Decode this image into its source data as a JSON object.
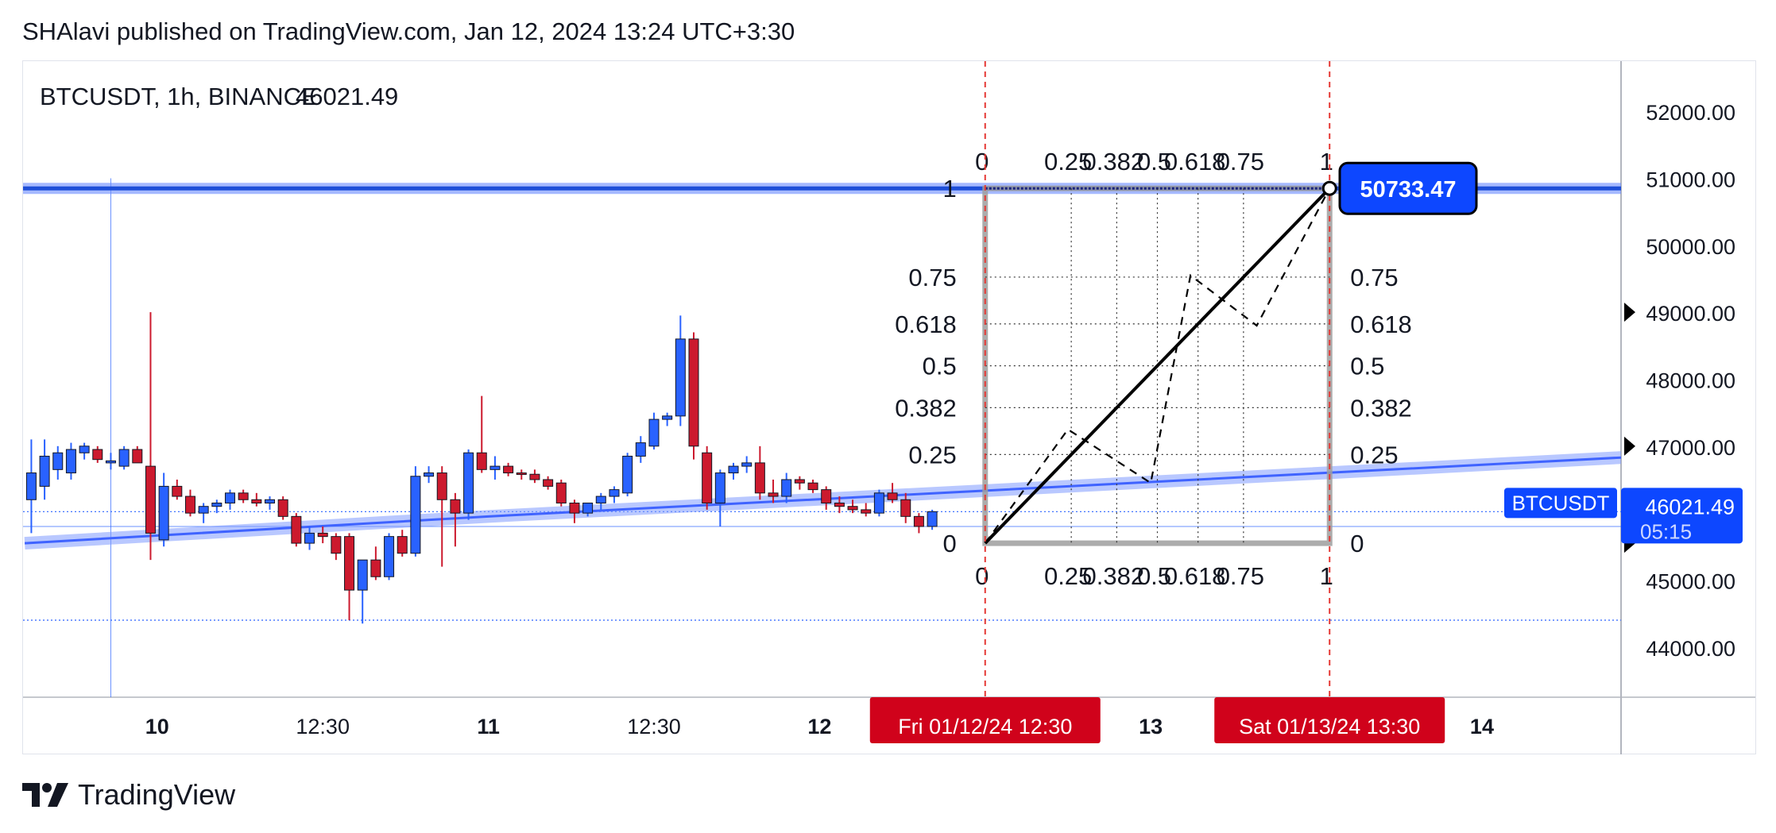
{
  "header": {
    "published": "SHAlavi published on TradingView.com, Jan 12, 2024 13:24 UTC+3:30"
  },
  "footer": {
    "brand": "TradingView"
  },
  "colors": {
    "up": "#2962ff",
    "down": "#cc1a2e",
    "accent": "#0d47ff",
    "label_red": "#d0021b"
  },
  "chart_data": {
    "type": "candlestick",
    "title": "BTCUSDT, 1h, BINANCE",
    "last_value": "46021.49",
    "symbol": "BTCUSDT",
    "last_price_label": "46021.49",
    "countdown": "05:15",
    "ylim": [
      43250,
      52750
    ],
    "y_ticks": [
      "44000.00",
      "45000.00",
      "47000.00",
      "48000.00",
      "49000.00",
      "50000.00",
      "51000.00",
      "52000.00"
    ],
    "x_ticks": [
      {
        "label": "10",
        "bold": true,
        "x": 10.0
      },
      {
        "label": "12:30",
        "bold": false,
        "x": 10.5
      },
      {
        "label": "11",
        "bold": true,
        "x": 11.0
      },
      {
        "label": "12:30",
        "bold": false,
        "x": 11.5
      },
      {
        "label": "12",
        "bold": true,
        "x": 12.0
      },
      {
        "label": "13",
        "bold": true,
        "x": 13.0
      },
      {
        "label": "14",
        "bold": true,
        "x": 14.0
      }
    ],
    "time_labels": [
      {
        "label": "Fri 01/12/24   12:30",
        "x": 12.5
      },
      {
        "label": "Sat 01/13/24   13:30",
        "x": 13.54
      }
    ],
    "candles": [
      {
        "t": 9.62,
        "o": 46200,
        "h": 47100,
        "l": 45700,
        "c": 46600
      },
      {
        "t": 9.66,
        "o": 46400,
        "h": 47100,
        "l": 46200,
        "c": 46850
      },
      {
        "t": 9.7,
        "o": 46650,
        "h": 47000,
        "l": 46500,
        "c": 46900
      },
      {
        "t": 9.74,
        "o": 46600,
        "h": 47050,
        "l": 46500,
        "c": 46950
      },
      {
        "t": 9.78,
        "o": 46900,
        "h": 47050,
        "l": 46800,
        "c": 47000
      },
      {
        "t": 9.82,
        "o": 46950,
        "h": 47000,
        "l": 46750,
        "c": 46800
      },
      {
        "t": 9.86,
        "o": 46750,
        "h": 46900,
        "l": 46650,
        "c": 46780
      },
      {
        "t": 9.9,
        "o": 46700,
        "h": 47000,
        "l": 46650,
        "c": 46950
      },
      {
        "t": 9.94,
        "o": 46950,
        "h": 47000,
        "l": 46750,
        "c": 46750
      },
      {
        "t": 9.98,
        "o": 46700,
        "h": 49000,
        "l": 45300,
        "c": 45700
      },
      {
        "t": 10.02,
        "o": 45600,
        "h": 46600,
        "l": 45500,
        "c": 46400
      },
      {
        "t": 10.06,
        "o": 46400,
        "h": 46500,
        "l": 46200,
        "c": 46250
      },
      {
        "t": 10.1,
        "o": 46250,
        "h": 46350,
        "l": 45950,
        "c": 46000
      },
      {
        "t": 10.14,
        "o": 46000,
        "h": 46150,
        "l": 45850,
        "c": 46100
      },
      {
        "t": 10.18,
        "o": 46100,
        "h": 46200,
        "l": 46000,
        "c": 46150
      },
      {
        "t": 10.22,
        "o": 46150,
        "h": 46350,
        "l": 46050,
        "c": 46300
      },
      {
        "t": 10.26,
        "o": 46300,
        "h": 46350,
        "l": 46150,
        "c": 46200
      },
      {
        "t": 10.3,
        "o": 46200,
        "h": 46300,
        "l": 46100,
        "c": 46150
      },
      {
        "t": 10.34,
        "o": 46150,
        "h": 46250,
        "l": 46050,
        "c": 46200
      },
      {
        "t": 10.38,
        "o": 46200,
        "h": 46250,
        "l": 45900,
        "c": 45950
      },
      {
        "t": 10.42,
        "o": 45950,
        "h": 46000,
        "l": 45500,
        "c": 45550
      },
      {
        "t": 10.46,
        "o": 45550,
        "h": 45800,
        "l": 45450,
        "c": 45700
      },
      {
        "t": 10.5,
        "o": 45700,
        "h": 45800,
        "l": 45550,
        "c": 45650
      },
      {
        "t": 10.54,
        "o": 45650,
        "h": 45700,
        "l": 45300,
        "c": 45400
      },
      {
        "t": 10.58,
        "o": 45650,
        "h": 45700,
        "l": 44400,
        "c": 44850
      },
      {
        "t": 10.62,
        "o": 44850,
        "h": 45300,
        "l": 44350,
        "c": 45300
      },
      {
        "t": 10.66,
        "o": 45300,
        "h": 45500,
        "l": 45000,
        "c": 45050
      },
      {
        "t": 10.7,
        "o": 45050,
        "h": 45700,
        "l": 45000,
        "c": 45650
      },
      {
        "t": 10.74,
        "o": 45650,
        "h": 45750,
        "l": 45350,
        "c": 45400
      },
      {
        "t": 10.78,
        "o": 45400,
        "h": 46700,
        "l": 45350,
        "c": 46550
      },
      {
        "t": 10.82,
        "o": 46550,
        "h": 46700,
        "l": 46450,
        "c": 46600
      },
      {
        "t": 10.86,
        "o": 46600,
        "h": 46700,
        "l": 45200,
        "c": 46200
      },
      {
        "t": 10.9,
        "o": 46200,
        "h": 46300,
        "l": 45500,
        "c": 46000
      },
      {
        "t": 10.94,
        "o": 46000,
        "h": 46950,
        "l": 45900,
        "c": 46900
      },
      {
        "t": 10.98,
        "o": 46900,
        "h": 47750,
        "l": 46600,
        "c": 46650
      },
      {
        "t": 11.02,
        "o": 46650,
        "h": 46850,
        "l": 46500,
        "c": 46700
      },
      {
        "t": 11.06,
        "o": 46700,
        "h": 46750,
        "l": 46550,
        "c": 46600
      },
      {
        "t": 11.1,
        "o": 46600,
        "h": 46650,
        "l": 46500,
        "c": 46580
      },
      {
        "t": 11.14,
        "o": 46580,
        "h": 46650,
        "l": 46450,
        "c": 46500
      },
      {
        "t": 11.18,
        "o": 46500,
        "h": 46550,
        "l": 46350,
        "c": 46400
      },
      {
        "t": 11.22,
        "o": 46450,
        "h": 46500,
        "l": 46100,
        "c": 46150
      },
      {
        "t": 11.26,
        "o": 46150,
        "h": 46200,
        "l": 45850,
        "c": 46000
      },
      {
        "t": 11.3,
        "o": 46000,
        "h": 46150,
        "l": 45950,
        "c": 46150
      },
      {
        "t": 11.34,
        "o": 46150,
        "h": 46300,
        "l": 46050,
        "c": 46250
      },
      {
        "t": 11.38,
        "o": 46250,
        "h": 46400,
        "l": 46150,
        "c": 46350
      },
      {
        "t": 11.42,
        "o": 46300,
        "h": 46900,
        "l": 46250,
        "c": 46850
      },
      {
        "t": 11.46,
        "o": 46850,
        "h": 47150,
        "l": 46750,
        "c": 47050
      },
      {
        "t": 11.5,
        "o": 47000,
        "h": 47500,
        "l": 46950,
        "c": 47400
      },
      {
        "t": 11.54,
        "o": 47400,
        "h": 47500,
        "l": 47300,
        "c": 47450
      },
      {
        "t": 11.58,
        "o": 47450,
        "h": 48950,
        "l": 47300,
        "c": 48600
      },
      {
        "t": 11.62,
        "o": 48600,
        "h": 48700,
        "l": 46800,
        "c": 47000
      },
      {
        "t": 11.66,
        "o": 46900,
        "h": 47000,
        "l": 46050,
        "c": 46150
      },
      {
        "t": 11.7,
        "o": 46150,
        "h": 46650,
        "l": 45800,
        "c": 46600
      },
      {
        "t": 11.74,
        "o": 46600,
        "h": 46750,
        "l": 46500,
        "c": 46700
      },
      {
        "t": 11.78,
        "o": 46700,
        "h": 46850,
        "l": 46600,
        "c": 46750
      },
      {
        "t": 11.82,
        "o": 46750,
        "h": 47000,
        "l": 46200,
        "c": 46300
      },
      {
        "t": 11.86,
        "o": 46300,
        "h": 46500,
        "l": 46150,
        "c": 46250
      },
      {
        "t": 11.9,
        "o": 46250,
        "h": 46600,
        "l": 46150,
        "c": 46500
      },
      {
        "t": 11.94,
        "o": 46500,
        "h": 46550,
        "l": 46350,
        "c": 46450
      },
      {
        "t": 11.98,
        "o": 46450,
        "h": 46500,
        "l": 46300,
        "c": 46350
      },
      {
        "t": 12.02,
        "o": 46350,
        "h": 46400,
        "l": 46050,
        "c": 46150
      },
      {
        "t": 12.06,
        "o": 46150,
        "h": 46250,
        "l": 46000,
        "c": 46100
      },
      {
        "t": 12.1,
        "o": 46100,
        "h": 46200,
        "l": 46000,
        "c": 46050
      },
      {
        "t": 12.14,
        "o": 46050,
        "h": 46150,
        "l": 45950,
        "c": 46000
      },
      {
        "t": 12.18,
        "o": 46000,
        "h": 46350,
        "l": 45950,
        "c": 46300
      },
      {
        "t": 12.22,
        "o": 46300,
        "h": 46450,
        "l": 46150,
        "c": 46200
      },
      {
        "t": 12.26,
        "o": 46200,
        "h": 46300,
        "l": 45850,
        "c": 45950
      },
      {
        "t": 12.3,
        "o": 45950,
        "h": 46000,
        "l": 45700,
        "c": 45800
      },
      {
        "t": 12.34,
        "o": 45800,
        "h": 46050,
        "l": 45750,
        "c": 46021.49
      }
    ],
    "horizontal_line": {
      "price": 50850
    },
    "trend_line": {
      "x1": 9.6,
      "y1": 45550,
      "x2": 11.0,
      "y2": 45950,
      "x3": 14.5,
      "y3": 46850
    },
    "fib_box": {
      "x_start": 12.5,
      "x_end": 13.54,
      "p_low": 45550,
      "p_high": 50850,
      "levels": [
        "0",
        "0.25",
        "0.382",
        "0.5",
        "0.618",
        "0.75",
        "1"
      ],
      "level_values": [
        0,
        0.25,
        0.382,
        0.5,
        0.618,
        0.75,
        1
      ]
    },
    "zigzag": [
      [
        12.5,
        45550
      ],
      [
        12.75,
        47250
      ],
      [
        13.0,
        46450
      ],
      [
        13.12,
        49550
      ],
      [
        13.32,
        48800
      ],
      [
        13.54,
        50850
      ]
    ],
    "price_label": {
      "value": "50733.47",
      "price": 50850
    },
    "markers": [
      49000,
      47000,
      45550
    ]
  }
}
